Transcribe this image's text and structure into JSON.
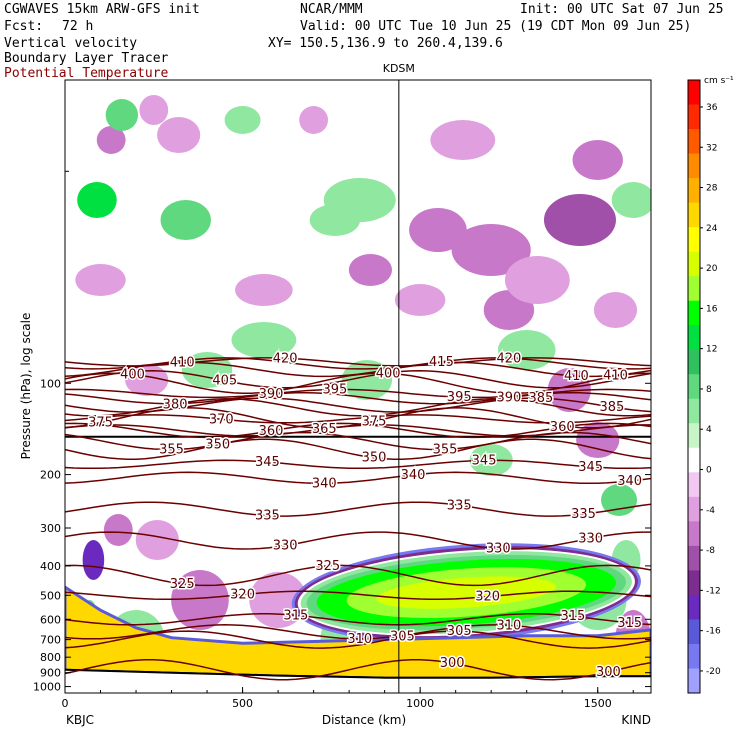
{
  "header": {
    "model": "CGWAVES 15km ARW-GFS init",
    "org": "NCAR/MMM",
    "init": "Init: 00 UTC Sat 07 Jun 25",
    "fcst_label": "Fcst:",
    "fcst_value": "72 h",
    "valid": "Valid: 00 UTC Tue 10 Jun 25 (19 CDT Mon 09 Jun 25)",
    "field1": "Vertical velocity",
    "xy": "XY= 150.5,136.9 to 260.4,139.6",
    "field2": "Boundary Layer Tracer",
    "field3": "Potential Temperature"
  },
  "chart_data": {
    "type": "heatmap",
    "title": "",
    "xlabel": "Distance (km)",
    "ylabel": "Pressure (hPa), log scale",
    "xlim": [
      0,
      1650
    ],
    "ylim": [
      1050,
      10
    ],
    "y_scale": "log",
    "x_ticks": [
      0,
      500,
      1000,
      1500
    ],
    "x_tick_labels": [
      "0",
      "500",
      "1000",
      "1500"
    ],
    "y_ticks": [
      100,
      200,
      300,
      400,
      500,
      600,
      700,
      800,
      900,
      1000
    ],
    "y_tick_labels": [
      "100",
      "200",
      "300",
      "400",
      "500",
      "600",
      "700",
      "800",
      "900",
      "1000"
    ],
    "station_marker": {
      "label": "KDSM",
      "x": 940
    },
    "left_station": "KBJC",
    "right_station": "KIND",
    "colorbar": {
      "unit": "cm s⁻¹",
      "tick_labels": [
        "36",
        "32",
        "28",
        "24",
        "20",
        "16",
        "12",
        "8",
        "4",
        "0",
        "-4",
        "-8",
        "-12",
        "-16",
        "-20"
      ],
      "colors": [
        "#ff0000",
        "#ff2a00",
        "#ff5a00",
        "#ff8c00",
        "#ffb000",
        "#ffd800",
        "#ffff00",
        "#d8ff00",
        "#a0ff30",
        "#00ff00",
        "#00e040",
        "#30c060",
        "#60d880",
        "#90e8a0",
        "#c8f5c8",
        "#ffffff",
        "#f0c8f0",
        "#e0a0e0",
        "#c878c8",
        "#a050a8",
        "#7d2d90",
        "#6a2ac0",
        "#5a5ad8",
        "#7878f0",
        "#a0a0ff"
      ]
    },
    "theta_contours": [
      {
        "value": 420,
        "p": 85,
        "labels_at": [
          620,
          1250
        ]
      },
      {
        "value": 415,
        "p": 86,
        "labels_at": [
          1060
        ]
      },
      {
        "value": 410,
        "p": 90,
        "labels_at": [
          330,
          1440,
          1550
        ]
      },
      {
        "value": 405,
        "p": 97,
        "labels_at": [
          450
        ]
      },
      {
        "value": 400,
        "p": 100,
        "labels_at": [
          190,
          910
        ]
      },
      {
        "value": 395,
        "p": 108,
        "labels_at": [
          760,
          1110
        ]
      },
      {
        "value": 390,
        "p": 112,
        "labels_at": [
          580,
          1250
        ]
      },
      {
        "value": 385,
        "p": 118,
        "labels_at": [
          1340,
          1540
        ]
      },
      {
        "value": 380,
        "p": 120,
        "labels_at": [
          310
        ]
      },
      {
        "value": 375,
        "p": 130,
        "labels_at": [
          100,
          870
        ]
      },
      {
        "value": 370,
        "p": 131,
        "labels_at": [
          440
        ]
      },
      {
        "value": 365,
        "p": 143,
        "labels_at": [
          730
        ]
      },
      {
        "value": 360,
        "p": 143,
        "labels_at": [
          580,
          1400
        ]
      },
      {
        "value": 355,
        "p": 155,
        "labels_at": [
          300,
          1070
        ]
      },
      {
        "value": 350,
        "p": 165,
        "labels_at": [
          430,
          870
        ]
      },
      {
        "value": 345,
        "p": 185,
        "labels_at": [
          570,
          1180,
          1480
        ]
      },
      {
        "value": 340,
        "p": 205,
        "labels_at": [
          730,
          980,
          1590
        ]
      },
      {
        "value": 335,
        "p": 260,
        "labels_at": [
          570,
          1110,
          1460
        ]
      },
      {
        "value": 330,
        "p": 330,
        "labels_at": [
          620,
          1220,
          1480
        ]
      },
      {
        "value": 325,
        "p": 430,
        "labels_at": [
          330,
          740
        ]
      },
      {
        "value": 320,
        "p": 500,
        "labels_at": [
          500,
          1190
        ]
      },
      {
        "value": 315,
        "p": 600,
        "labels_at": [
          650,
          1430,
          1590
        ]
      },
      {
        "value": 310,
        "p": 660,
        "labels_at": [
          830,
          1250
        ]
      },
      {
        "value": 305,
        "p": 700,
        "labels_at": [
          950,
          1110
        ]
      },
      {
        "value": 300,
        "p": 880,
        "labels_at": [
          1090,
          1530
        ]
      }
    ],
    "boundary_layer_tracer_top": [
      {
        "x": 0,
        "p": 470
      },
      {
        "x": 100,
        "p": 560
      },
      {
        "x": 200,
        "p": 640
      },
      {
        "x": 300,
        "p": 690
      },
      {
        "x": 500,
        "p": 720
      },
      {
        "x": 700,
        "p": 710
      },
      {
        "x": 900,
        "p": 700
      },
      {
        "x": 1100,
        "p": 690
      },
      {
        "x": 1300,
        "p": 680
      },
      {
        "x": 1500,
        "p": 680
      },
      {
        "x": 1650,
        "p": 650
      }
    ],
    "updraft_core": {
      "x_center": 1130,
      "p_center": 490,
      "max_value": 20
    }
  }
}
